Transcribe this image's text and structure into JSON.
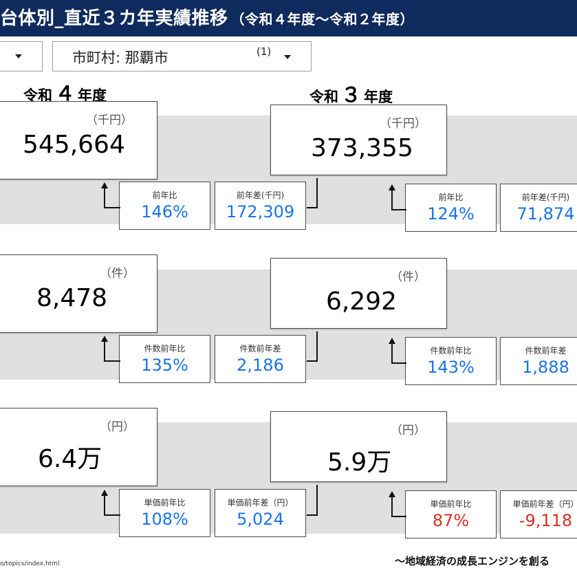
{
  "header": {
    "title": "台体別_直近３カ年実績推移",
    "subtitle": "（令和４年度～令和２年度）"
  },
  "filters": {
    "municipality_label": "市町村: 那覇市",
    "municipality_count": "(1)"
  },
  "columns": [
    {
      "prefix": "令和",
      "num": "４",
      "suffix": "年度"
    },
    {
      "prefix": "令和",
      "num": "３",
      "suffix": "年度"
    }
  ],
  "rows": [
    {
      "cards": [
        {
          "unit": "（千円）",
          "value": "545,664",
          "ratio_label": "前年比",
          "ratio": "146%",
          "diff_label": "前年差(千円)",
          "diff": "172,309"
        },
        {
          "unit": "（千円）",
          "value": "373,355",
          "ratio_label": "前年比",
          "ratio": "124%",
          "diff_label": "前年差(千円)",
          "diff": "71,874"
        }
      ]
    },
    {
      "cards": [
        {
          "unit": "（件）",
          "value": "8,478",
          "ratio_label": "件数前年比",
          "ratio": "135%",
          "diff_label": "件数前年差",
          "diff": "2,186"
        },
        {
          "unit": "（件）",
          "value": "6,292",
          "ratio_label": "件数前年比",
          "ratio": "143%",
          "diff_label": "件数前年差",
          "diff": "1,888"
        }
      ]
    },
    {
      "cards": [
        {
          "unit": "（円）",
          "value": "6.4万",
          "ratio_label": "単価前年比",
          "ratio": "108%",
          "diff_label": "単価前年差（円）",
          "diff": "5,024"
        },
        {
          "unit": "（円）",
          "value": "5.9万",
          "ratio_label": "単価前年比",
          "ratio": "87%",
          "diff_label": "単価前年差（円）",
          "diff": "-9,118"
        }
      ]
    }
  ],
  "footer": {
    "url": "o/topics/index.html",
    "tagline": "～地域経済の成長エンジンを創る"
  }
}
